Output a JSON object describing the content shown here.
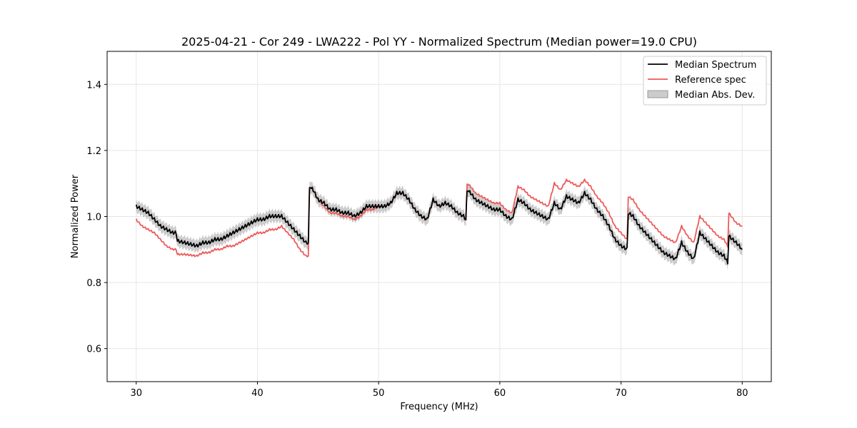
{
  "chart_data": {
    "type": "line",
    "title": "2025-04-21 - Cor 249 - LWA222 - Pol YY - Normalized Spectrum (Median power=19.0 CPU)",
    "xlabel": "Frequency (MHz)",
    "ylabel": "Normalized Power",
    "xlim": [
      27.6,
      82.4
    ],
    "ylim": [
      0.5,
      1.5
    ],
    "xticks": [
      30,
      40,
      50,
      60,
      70,
      80
    ],
    "yticks": [
      0.6,
      0.8,
      1.0,
      1.2,
      1.4
    ],
    "xtick_labels": [
      "30",
      "40",
      "50",
      "60",
      "70",
      "80"
    ],
    "ytick_labels": [
      "0.6",
      "0.8",
      "1.0",
      "1.2",
      "1.4"
    ],
    "grid": true,
    "legend_position": "upper right",
    "series": [
      {
        "name": "Median Spectrum",
        "color": "#000000",
        "x": [
          30.0,
          30.5,
          31.0,
          31.5,
          32.0,
          32.5,
          33.0,
          33.3,
          33.4,
          34.0,
          35.0,
          35.5,
          36.0,
          36.5,
          37.0,
          37.5,
          38.0,
          38.5,
          39.0,
          39.5,
          40.0,
          40.5,
          41.0,
          41.5,
          42.0,
          42.5,
          43.0,
          43.5,
          44.0,
          44.2,
          44.3,
          44.6,
          45.0,
          45.5,
          46.0,
          46.5,
          47.0,
          47.5,
          48.0,
          48.5,
          49.0,
          49.5,
          50.0,
          50.5,
          51.0,
          51.5,
          52.0,
          52.5,
          53.0,
          53.5,
          54.0,
          54.5,
          55.0,
          55.5,
          56.0,
          56.5,
          57.0,
          57.2,
          57.3,
          57.6,
          58.0,
          58.5,
          59.0,
          59.5,
          60.0,
          60.5,
          61.0,
          61.5,
          62.0,
          62.5,
          63.0,
          63.5,
          64.0,
          64.5,
          65.0,
          65.5,
          66.0,
          66.5,
          67.0,
          67.5,
          68.0,
          68.5,
          69.0,
          69.5,
          70.0,
          70.5,
          70.6,
          71.0,
          71.5,
          72.0,
          72.5,
          73.0,
          73.5,
          74.0,
          74.5,
          75.0,
          75.5,
          76.0,
          76.5,
          77.0,
          77.5,
          78.0,
          78.5,
          78.8,
          78.9,
          79.5,
          80.0
        ],
        "values": [
          1.03,
          1.02,
          1.01,
          0.99,
          0.97,
          0.96,
          0.95,
          0.95,
          0.925,
          0.92,
          0.91,
          0.92,
          0.92,
          0.93,
          0.93,
          0.94,
          0.95,
          0.96,
          0.97,
          0.98,
          0.99,
          0.99,
          1.0,
          1.0,
          1.0,
          0.98,
          0.96,
          0.94,
          0.92,
          0.92,
          1.09,
          1.08,
          1.05,
          1.04,
          1.02,
          1.02,
          1.01,
          1.01,
          1.0,
          1.01,
          1.03,
          1.03,
          1.03,
          1.03,
          1.04,
          1.07,
          1.07,
          1.05,
          1.02,
          1.0,
          0.99,
          1.05,
          1.03,
          1.04,
          1.03,
          1.01,
          1.0,
          0.99,
          1.08,
          1.07,
          1.05,
          1.04,
          1.03,
          1.02,
          1.02,
          1.0,
          0.99,
          1.05,
          1.04,
          1.02,
          1.01,
          1.0,
          0.99,
          1.04,
          1.02,
          1.06,
          1.05,
          1.04,
          1.07,
          1.05,
          1.02,
          1.0,
          0.97,
          0.93,
          0.91,
          0.9,
          1.01,
          1.0,
          0.97,
          0.95,
          0.93,
          0.91,
          0.89,
          0.88,
          0.87,
          0.92,
          0.89,
          0.87,
          0.95,
          0.93,
          0.91,
          0.89,
          0.88,
          0.86,
          0.94,
          0.92,
          0.9
        ]
      },
      {
        "name": "Reference spec",
        "color": "#ee5a5a",
        "x": [
          30.0,
          30.5,
          31.0,
          31.5,
          32.0,
          32.5,
          33.0,
          33.3,
          33.4,
          34.0,
          35.0,
          35.5,
          36.0,
          36.5,
          37.0,
          37.5,
          38.0,
          38.5,
          39.0,
          39.5,
          40.0,
          40.5,
          41.0,
          41.5,
          42.0,
          42.5,
          43.0,
          43.5,
          44.0,
          44.2,
          44.3,
          44.6,
          45.0,
          45.5,
          46.0,
          46.5,
          47.0,
          47.5,
          48.0,
          48.5,
          49.0,
          49.5,
          50.0,
          50.5,
          51.0,
          51.5,
          52.0,
          52.5,
          53.0,
          53.5,
          54.0,
          54.5,
          55.0,
          55.5,
          56.0,
          56.5,
          57.0,
          57.2,
          57.3,
          57.6,
          58.0,
          58.5,
          59.0,
          59.5,
          60.0,
          60.5,
          61.0,
          61.5,
          62.0,
          62.5,
          63.0,
          63.5,
          64.0,
          64.5,
          65.0,
          65.5,
          66.0,
          66.5,
          67.0,
          67.5,
          68.0,
          68.5,
          69.0,
          69.5,
          70.0,
          70.5,
          70.6,
          71.0,
          71.5,
          72.0,
          72.5,
          73.0,
          73.5,
          74.0,
          74.5,
          75.0,
          75.5,
          76.0,
          76.5,
          77.0,
          77.5,
          78.0,
          78.5,
          78.8,
          78.9,
          79.5,
          80.0
        ],
        "values": [
          0.99,
          0.97,
          0.96,
          0.95,
          0.93,
          0.91,
          0.9,
          0.9,
          0.885,
          0.885,
          0.88,
          0.89,
          0.89,
          0.9,
          0.9,
          0.91,
          0.91,
          0.92,
          0.93,
          0.94,
          0.95,
          0.95,
          0.96,
          0.96,
          0.97,
          0.95,
          0.93,
          0.9,
          0.88,
          0.88,
          1.09,
          1.08,
          1.05,
          1.03,
          1.01,
          1.01,
          1.0,
          1.0,
          0.99,
          1.0,
          1.02,
          1.02,
          1.03,
          1.03,
          1.04,
          1.07,
          1.07,
          1.05,
          1.02,
          1.0,
          0.99,
          1.05,
          1.03,
          1.04,
          1.03,
          1.01,
          1.0,
          0.99,
          1.1,
          1.09,
          1.07,
          1.06,
          1.05,
          1.04,
          1.04,
          1.02,
          1.01,
          1.09,
          1.08,
          1.06,
          1.05,
          1.04,
          1.03,
          1.1,
          1.08,
          1.11,
          1.1,
          1.09,
          1.11,
          1.09,
          1.06,
          1.04,
          1.01,
          0.97,
          0.95,
          0.93,
          1.06,
          1.05,
          1.02,
          1.0,
          0.98,
          0.96,
          0.94,
          0.93,
          0.92,
          0.97,
          0.94,
          0.92,
          1.0,
          0.98,
          0.96,
          0.94,
          0.93,
          0.91,
          1.01,
          0.98,
          0.97
        ]
      },
      {
        "name": "Median Abs. Dev.",
        "color": "#b0b0b0",
        "band_halfwidth": 0.018
      }
    ]
  }
}
